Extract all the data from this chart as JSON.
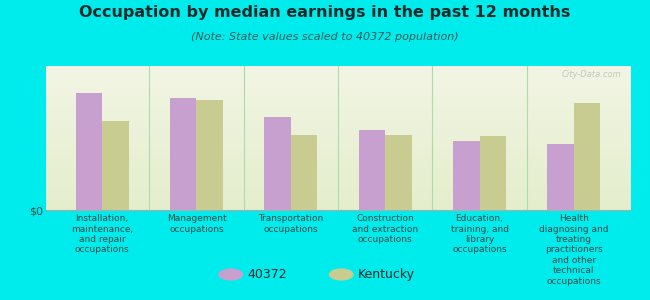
{
  "title": "Occupation by median earnings in the past 12 months",
  "subtitle": "(Note: State values scaled to 40372 population)",
  "background_color": "#00ecec",
  "plot_bg_top": "#f2f5e4",
  "plot_bg_bottom": "#e4eecc",
  "bar_color_city": "#c8a0d0",
  "bar_color_state": "#c8cc90",
  "categories": [
    "Installation,\nmaintenance,\nand repair\noccupations",
    "Management\noccupations",
    "Transportation\noccupations",
    "Construction\nand extraction\noccupations",
    "Education,\ntraining, and\nlibrary\noccupations",
    "Health\ndiagnosing and\ntreating\npractitioners\nand other\ntechnical\noccupations"
  ],
  "city_values": [
    0.85,
    0.82,
    0.68,
    0.58,
    0.5,
    0.48
  ],
  "state_values": [
    0.65,
    0.8,
    0.55,
    0.55,
    0.54,
    0.78
  ],
  "ylabel": "$0",
  "legend_city": "40372",
  "legend_state": "Kentucky",
  "watermark": "City-Data.com",
  "title_color": "#1a2a2a",
  "subtitle_color": "#3a5a5a",
  "tick_label_color": "#2a4a4a",
  "separator_color": "#aaddaa",
  "axis_color": "#aaaaaa"
}
